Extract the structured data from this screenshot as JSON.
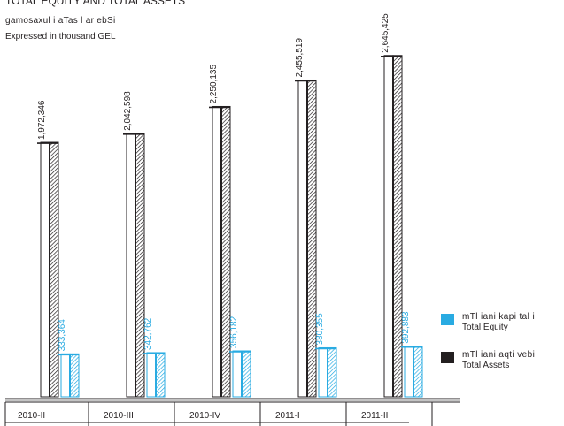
{
  "header": {
    "title": "TOTAL EQUITY AND TOTAL ASSETS",
    "subtitle_ge": "gamosaxul i aTas l ar ebSi",
    "subtitle_en": "Expressed in thousand GEL"
  },
  "legend": [
    {
      "ge": "mTl iani kapi tal i",
      "en": "Total Equity",
      "color": "#29abe2"
    },
    {
      "ge": "mTl iani aqti vebi",
      "en": "Total Assets",
      "color": "#231f20"
    }
  ],
  "colors": {
    "assets": "#231f20",
    "equity": "#29abe2"
  },
  "chart_data": {
    "type": "bar",
    "title": "TOTAL EQUITY AND TOTAL ASSETS",
    "categories": [
      "2010-II",
      "2010-III",
      "2010-IV",
      "2011-I",
      "2011-II"
    ],
    "series": [
      {
        "name": "Total Assets",
        "values": [
          1972346,
          2042598,
          2250135,
          2455519,
          2645425
        ],
        "labels": [
          "1,972,346",
          "2,042,598",
          "2,250,135",
          "2,455,519",
          "2,645,425"
        ]
      },
      {
        "name": "Total Equity",
        "values": [
          333364,
          342762,
          356182,
          380355,
          392883
        ],
        "labels": [
          "333,364",
          "342,762",
          "356,182",
          "380,355",
          "392,883"
        ]
      }
    ],
    "grid": false,
    "legend_position": "right"
  }
}
